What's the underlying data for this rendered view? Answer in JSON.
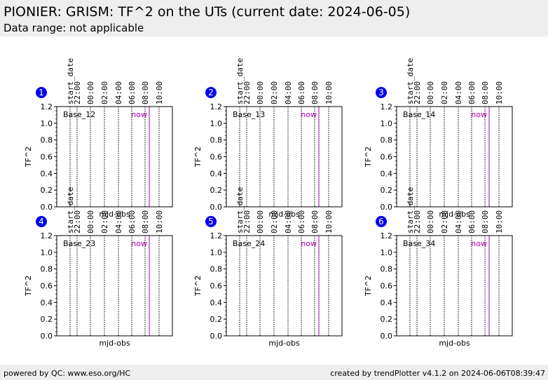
{
  "header": {
    "title": "PIONIER: GRISM: TF^2 on the UTs (current date: 2024-06-05)",
    "subtitle": "Data range: not applicable"
  },
  "footer": {
    "left": "powered by QC: www.eso.org/HC",
    "right": "created by trendPlotter v4.1.2 on 2024-06-06T08:39:47"
  },
  "colors": {
    "now_line": "#aa00aa",
    "badge": "#0000ee",
    "badge_text": "#ffffff",
    "grid": "#000000"
  },
  "shared": {
    "ylabel": "TF^2",
    "xlabel": "mjd-obs",
    "yticks": [
      "0.0",
      "0.2",
      "0.4",
      "0.6",
      "0.8",
      "1.0",
      "1.2"
    ],
    "ylim": [
      0,
      1.2
    ],
    "top_ticks": [
      "start_date",
      "22:00",
      "00:00",
      "02:00",
      "04:00",
      "06:00",
      "08:00",
      "10:00"
    ],
    "now_label": "now"
  },
  "chart_data": [
    {
      "type": "scatter",
      "panel": "1",
      "label": "Base_12",
      "x": [],
      "y": []
    },
    {
      "type": "scatter",
      "panel": "2",
      "label": "Base_13",
      "x": [],
      "y": []
    },
    {
      "type": "scatter",
      "panel": "3",
      "label": "Base_14",
      "x": [],
      "y": []
    },
    {
      "type": "scatter",
      "panel": "4",
      "label": "Base_23",
      "x": [],
      "y": []
    },
    {
      "type": "scatter",
      "panel": "5",
      "label": "Base_24",
      "x": [],
      "y": []
    },
    {
      "type": "scatter",
      "panel": "6",
      "label": "Base_34",
      "x": [],
      "y": []
    }
  ]
}
